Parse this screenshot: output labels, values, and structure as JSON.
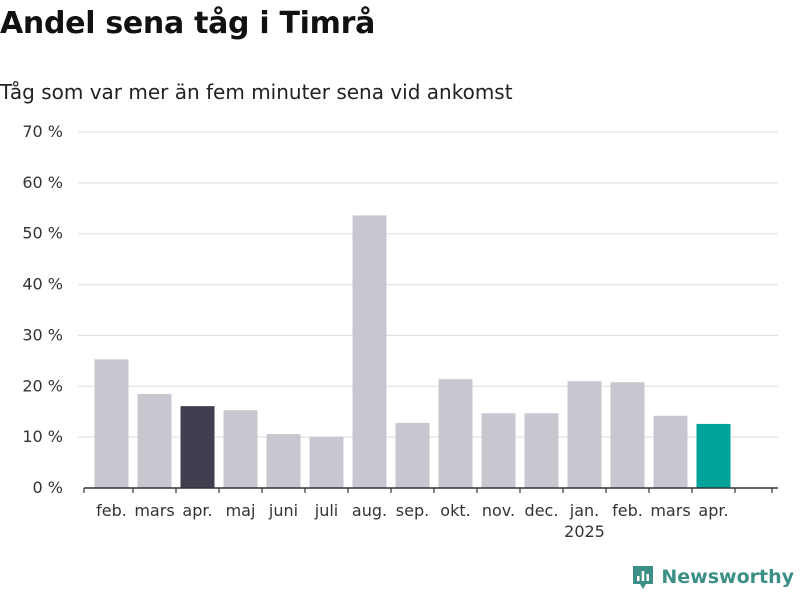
{
  "title": "Andel sena tåg i Timrå",
  "subtitle": "Tåg som var mer än fem minuter sena vid ankomst",
  "logo_text": "Newsworthy",
  "chart_data": {
    "type": "bar",
    "categories": [
      "feb.",
      "mars",
      "apr.",
      "maj",
      "juni",
      "juli",
      "aug.",
      "sep.",
      "okt.",
      "nov.",
      "dec.",
      "jan.",
      "feb.",
      "mars",
      "apr."
    ],
    "year_labels": [
      {
        "index": 11,
        "label": "2025"
      }
    ],
    "values": [
      25.3,
      18.5,
      16.1,
      15.3,
      10.6,
      10.1,
      53.6,
      12.8,
      21.4,
      14.7,
      14.7,
      21.0,
      20.8,
      14.2,
      12.6
    ],
    "highlight": {
      "2": "#403f4f",
      "14": "#00a39a"
    },
    "bar_color": "#c8c7d0",
    "ylim": [
      0,
      70
    ],
    "yticks": [
      0,
      10,
      20,
      30,
      40,
      50,
      60,
      70
    ],
    "ytick_suffix": " %",
    "grid": true,
    "xlabel": "",
    "ylabel": ""
  }
}
